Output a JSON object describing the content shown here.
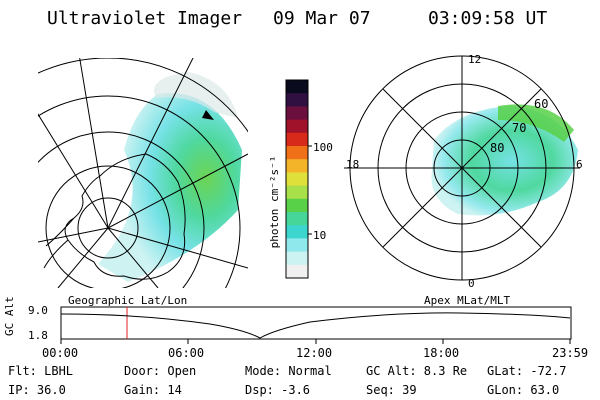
{
  "header": {
    "instrument": "Ultraviolet Imager",
    "date": "09 Mar 07",
    "time": "03:09:58 UT"
  },
  "colorbar": {
    "label": "photon cm⁻²s⁻¹",
    "ticks": [
      "100",
      "10"
    ],
    "colors": [
      "#0a0a1e",
      "#301040",
      "#6b0f3f",
      "#a0122a",
      "#d82a1a",
      "#f07018",
      "#f4b42a",
      "#dfe03a",
      "#a8e04a",
      "#58d048",
      "#46d69a",
      "#3cd6cf",
      "#8fe8ec",
      "#ccf2f2",
      "#f0f0f0"
    ]
  },
  "geo_map": {
    "projection_label": "Geographic Lat/Lon"
  },
  "polar_plot": {
    "projection_label": "Apex MLat/MLT",
    "lat_labels": [
      "60",
      "70",
      "80"
    ],
    "mlt_labels": {
      "top": "12",
      "left": "18",
      "right": "6",
      "bottom": "0"
    }
  },
  "altitude_plot": {
    "ylabel": "GC Alt",
    "y_ticks": [
      "9.0",
      "1.8"
    ],
    "x_ticks": [
      "00:00",
      "06:00",
      "12:00",
      "18:00",
      "23:59"
    ]
  },
  "info": {
    "flt": "Flt: LBHL",
    "ip": "IP: 36.0",
    "door": "Door: Open",
    "gain": "Gain: 14",
    "mode": "Mode: Normal",
    "dsp": "Dsp:    -3.6",
    "gc_alt": "GC Alt: 8.3 Re",
    "seq": "Seq: 39",
    "glat": "GLat:  -72.7",
    "glon": "GLon:   63.0"
  }
}
